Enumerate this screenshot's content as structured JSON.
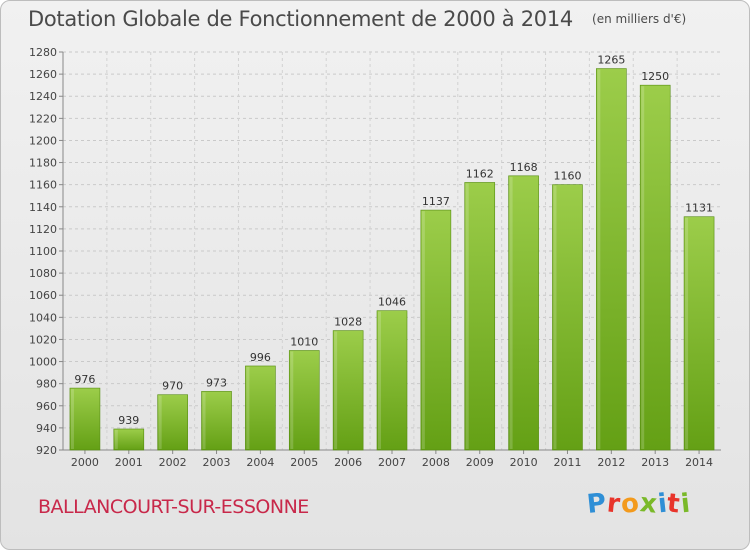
{
  "chart_data": {
    "type": "bar",
    "title": "Dotation Globale de Fonctionnement de 2000 à 2014",
    "subtitle": "(en milliers d'€)",
    "categories": [
      "2000",
      "2001",
      "2002",
      "2003",
      "2004",
      "2005",
      "2006",
      "2007",
      "2008",
      "2009",
      "2010",
      "2011",
      "2012",
      "2013",
      "2014"
    ],
    "values": [
      976,
      939,
      970,
      973,
      996,
      1010,
      1028,
      1046,
      1137,
      1162,
      1168,
      1160,
      1265,
      1250,
      1131
    ],
    "ylim": [
      920,
      1280
    ],
    "yticks": [
      920,
      940,
      960,
      980,
      1000,
      1020,
      1040,
      1060,
      1080,
      1100,
      1120,
      1140,
      1160,
      1180,
      1200,
      1220,
      1240,
      1260,
      1280
    ],
    "grid": true,
    "xlabel": "",
    "ylabel": "",
    "colors": {
      "bar_top": "#9ccd4a",
      "bar_bottom": "#64a015",
      "bar_shade": "#558c10"
    }
  },
  "footer": {
    "commune": "BALLANCOURT-SUR-ESSONNE",
    "brand_letters": [
      "P",
      "r",
      "o",
      "x",
      "i",
      "t",
      "i"
    ],
    "brand_colors": [
      "#2f8fd6",
      "#e8342b",
      "#f39a1d",
      "#7ab929",
      "#2f8fd6",
      "#e8342b",
      "#7ab929"
    ]
  }
}
